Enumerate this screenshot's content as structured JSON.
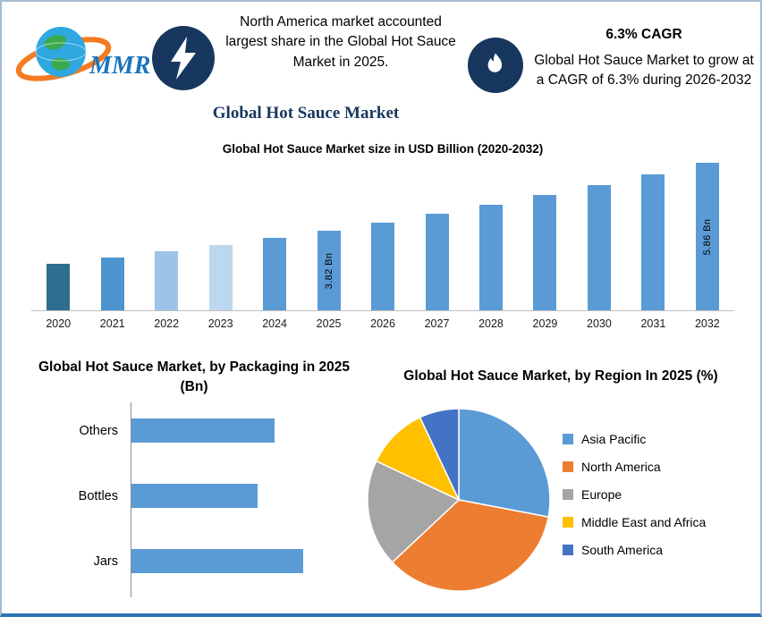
{
  "header": {
    "brand": "MMR",
    "note_left": "North America market accounted largest share in the Global Hot Sauce Market in 2025.",
    "cagr_value": "6.3% CAGR",
    "note_right": "Global Hot Sauce Market to grow at a CAGR of 6.3% during 2026-2032"
  },
  "page_title": "Global Hot Sauce Market",
  "colors": {
    "badge_navy": "#17375E",
    "primary_bar_blue": "#5B9BD5",
    "title_navy": "#17375E"
  },
  "chart_data": [
    {
      "type": "bar",
      "title": "Global Hot Sauce Market size in USD Billion (2020-2032)",
      "categories": [
        "2020",
        "2021",
        "2022",
        "2023",
        "2024",
        "2025",
        "2026",
        "2027",
        "2028",
        "2029",
        "2030",
        "2031",
        "2032"
      ],
      "values": [
        2.81,
        2.99,
        3.18,
        3.38,
        3.59,
        3.82,
        4.06,
        4.32,
        4.59,
        4.88,
        5.19,
        5.51,
        5.86
      ],
      "value_labels": [
        null,
        null,
        null,
        null,
        null,
        "3.82 Bn",
        null,
        null,
        null,
        null,
        null,
        null,
        "5.86 Bn"
      ],
      "bar_colors": [
        "#2E6E91",
        "#4D94CE",
        "#9DC3E6",
        "#BDD7EE",
        "#5B9BD5",
        "#5B9BD5",
        "#5B9BD5",
        "#5B9BD5",
        "#5B9BD5",
        "#5B9BD5",
        "#5B9BD5",
        "#5B9BD5",
        "#5B9BD5"
      ],
      "xlabel": "",
      "ylabel": "",
      "grid": false,
      "legend": false
    },
    {
      "type": "bar",
      "orientation": "horizontal",
      "title": "Global Hot Sauce Market, by Packaging in 2025 (Bn)",
      "categories": [
        "Others",
        "Bottles",
        "Jars"
      ],
      "values": [
        1.25,
        1.1,
        1.5
      ],
      "bar_color": "#5B9BD5",
      "grid": false,
      "legend": false
    },
    {
      "type": "pie",
      "title": "Global Hot Sauce Market, by Region In 2025 (%)",
      "slices": [
        {
          "label": "Asia Pacific",
          "value": 28,
          "color": "#5B9BD5"
        },
        {
          "label": "North America",
          "value": 35,
          "color": "#ED7D31"
        },
        {
          "label": "Europe",
          "value": 19,
          "color": "#A5A5A5"
        },
        {
          "label": "Middle East and Africa",
          "value": 11,
          "color": "#FFC000"
        },
        {
          "label": "South America",
          "value": 7,
          "color": "#4472C4"
        }
      ],
      "legend_position": "right"
    }
  ]
}
